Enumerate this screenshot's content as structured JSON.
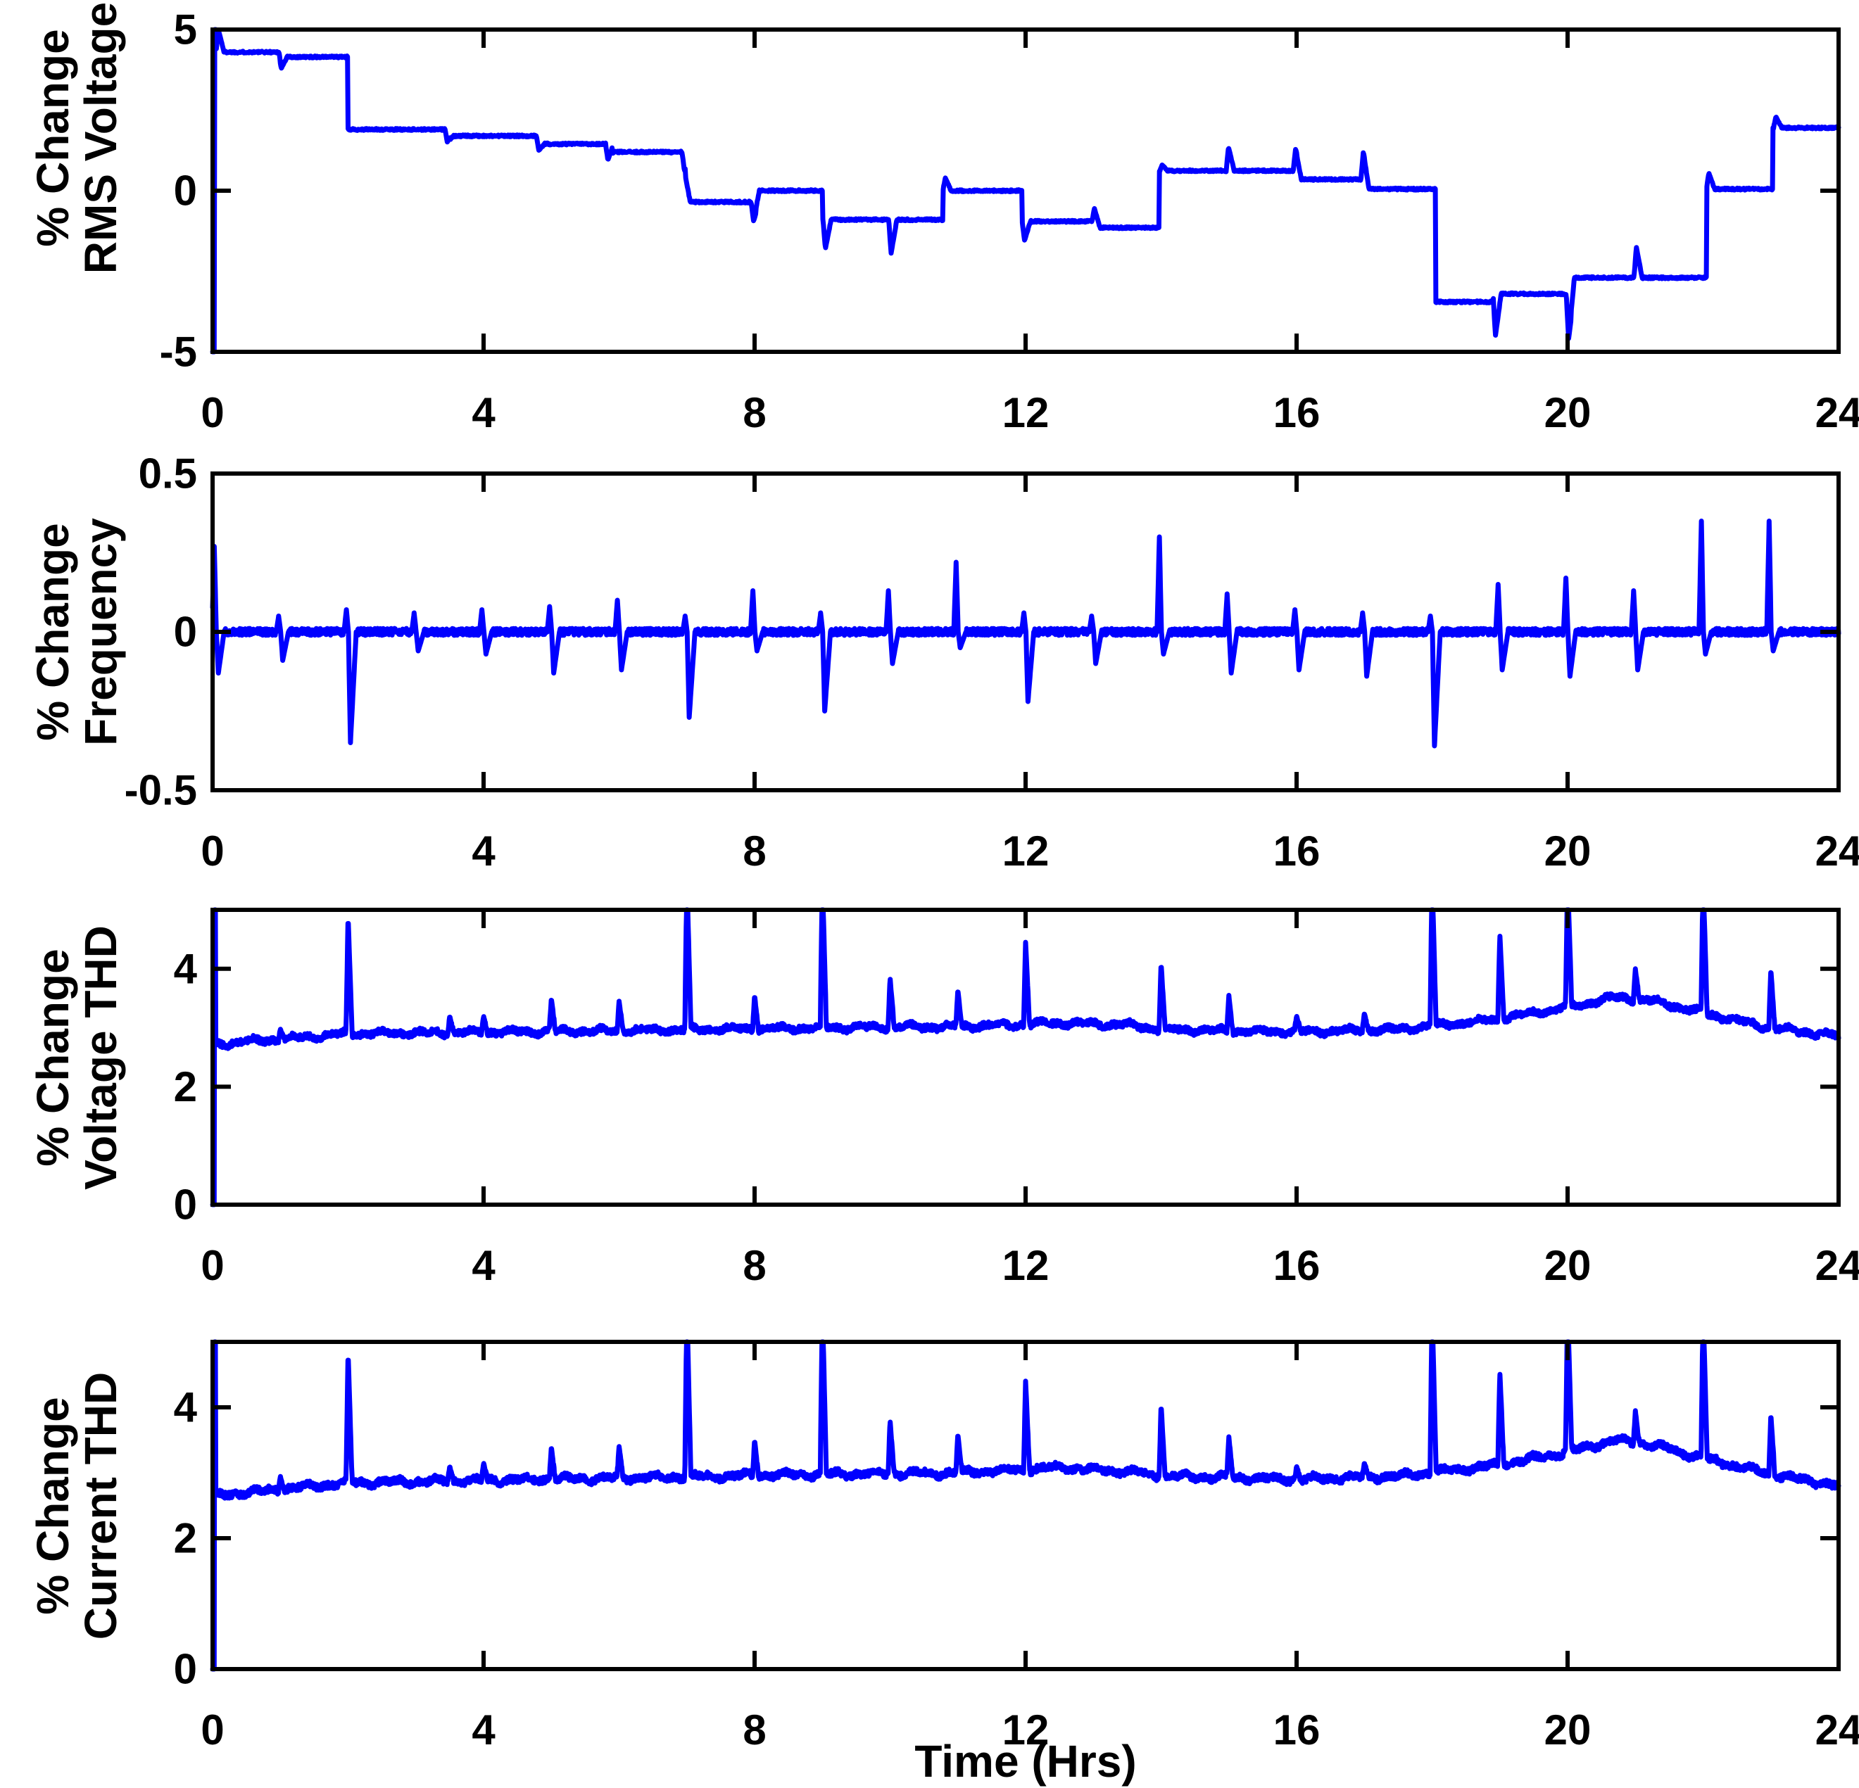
{
  "figure": {
    "background": "#FFFFFF",
    "axis_color": "#000000",
    "line_color": "#0000FF",
    "x_axis_label": "Time (Hrs)"
  },
  "chart_data": [
    {
      "type": "line",
      "id": "rms-voltage",
      "ylabel": [
        "% Change",
        "RMS Voltage"
      ],
      "ylim": [
        -5,
        5
      ],
      "yticks": [
        -5,
        0,
        5
      ],
      "ytick_labels": [
        "-5",
        "0",
        "5"
      ],
      "xlim": [
        0,
        24
      ],
      "xticks": [
        0,
        4,
        8,
        12,
        16,
        20,
        24
      ],
      "xtick_labels": [
        "0",
        "4",
        "8",
        "12",
        "16",
        "20",
        "24"
      ],
      "series_kind": "steps",
      "noise_amp": 0.03,
      "init_vline": {
        "t": 0.03,
        "span": [
          -5,
          5
        ]
      },
      "steps": [
        [
          0.05,
          1.0,
          4.3
        ],
        [
          1.0,
          2.0,
          4.15
        ],
        [
          2.0,
          3.5,
          1.9
        ],
        [
          3.5,
          4.82,
          1.7
        ],
        [
          4.82,
          5.9,
          1.45
        ],
        [
          5.9,
          6.98,
          1.2
        ],
        [
          6.98,
          8.02,
          -0.35
        ],
        [
          8.02,
          9.0,
          0.0
        ],
        [
          9.0,
          10.78,
          -0.9
        ],
        [
          10.78,
          11.95,
          0.0
        ],
        [
          11.95,
          13.02,
          -0.95
        ],
        [
          13.02,
          13.97,
          -1.15
        ],
        [
          13.97,
          16.0,
          0.62
        ],
        [
          16.0,
          17.0,
          0.35
        ],
        [
          17.0,
          18.05,
          0.05
        ],
        [
          18.05,
          18.9,
          -3.45
        ],
        [
          18.9,
          20.05,
          -3.2
        ],
        [
          20.05,
          22.05,
          -2.7
        ],
        [
          22.05,
          23.03,
          0.05
        ],
        [
          23.03,
          24.0,
          1.95
        ]
      ],
      "transients": [
        [
          0.07,
          5.0
        ],
        [
          1.0,
          3.8
        ],
        [
          3.45,
          1.5
        ],
        [
          4.8,
          1.25
        ],
        [
          5.82,
          0.95
        ],
        [
          6.95,
          0.6
        ],
        [
          7.97,
          -0.95
        ],
        [
          9.03,
          -1.8
        ],
        [
          10.0,
          -1.95
        ],
        [
          10.8,
          0.4
        ],
        [
          11.97,
          -1.55
        ],
        [
          13.0,
          -0.55
        ],
        [
          14.0,
          0.8
        ],
        [
          14.98,
          1.35
        ],
        [
          15.97,
          1.3
        ],
        [
          16.97,
          1.2
        ],
        [
          18.92,
          -4.5
        ],
        [
          20.0,
          -4.6
        ],
        [
          21.0,
          -1.75
        ],
        [
          22.07,
          0.55
        ],
        [
          23.06,
          2.3
        ]
      ]
    },
    {
      "type": "line",
      "id": "frequency",
      "ylabel": [
        "% Change",
        "Frequency"
      ],
      "ylim": [
        -0.5,
        0.5
      ],
      "yticks": [
        -0.5,
        0,
        0.5
      ],
      "ytick_labels": [
        "-0.5",
        "0",
        "0.5"
      ],
      "xlim": [
        0,
        24
      ],
      "xticks": [
        0,
        4,
        8,
        12,
        16,
        20,
        24
      ],
      "xtick_labels": [
        "0",
        "4",
        "8",
        "12",
        "16",
        "20",
        "24"
      ],
      "series_kind": "spikes_bipolar",
      "baseline": 0,
      "noise_amp": 0.011,
      "events": [
        [
          0.05,
          0.27,
          -0.13
        ],
        [
          1,
          0.05,
          -0.09
        ],
        [
          2,
          0.07,
          -0.35
        ],
        [
          3,
          0.06,
          -0.06
        ],
        [
          4,
          0.07,
          -0.07
        ],
        [
          5,
          0.08,
          -0.13
        ],
        [
          6,
          0.1,
          -0.12
        ],
        [
          7,
          0.05,
          -0.27
        ],
        [
          8,
          0.13,
          -0.06
        ],
        [
          9,
          0.06,
          -0.25
        ],
        [
          10,
          0.13,
          -0.1
        ],
        [
          11,
          0.22,
          -0.05
        ],
        [
          12,
          0.06,
          -0.22
        ],
        [
          13,
          0.05,
          -0.1
        ],
        [
          14,
          0.3,
          -0.07
        ],
        [
          15,
          0.12,
          -0.13
        ],
        [
          16,
          0.07,
          -0.12
        ],
        [
          17,
          0.06,
          -0.14
        ],
        [
          18,
          0.05,
          -0.36
        ],
        [
          19,
          0.15,
          -0.12
        ],
        [
          20,
          0.17,
          -0.14
        ],
        [
          21,
          0.13,
          -0.12
        ],
        [
          22,
          0.35,
          -0.07
        ],
        [
          23,
          0.35,
          -0.06
        ]
      ]
    },
    {
      "type": "line",
      "id": "voltage-thd",
      "ylabel": [
        "% Change",
        "Voltage THD"
      ],
      "ylim": [
        0,
        5
      ],
      "yticks": [
        0,
        2,
        4
      ],
      "ytick_labels": [
        "0",
        "2",
        "4"
      ],
      "xlim": [
        0,
        24
      ],
      "xticks": [
        0,
        4,
        8,
        12,
        16,
        20,
        24
      ],
      "xtick_labels": [
        "0",
        "4",
        "8",
        "12",
        "16",
        "20",
        "24"
      ],
      "series_kind": "noisy_spikes",
      "noise_amp": 0.05,
      "init_vline": {
        "t": 0.025,
        "span": [
          0,
          5
        ]
      },
      "baseline_points": [
        [
          0,
          2.72
        ],
        [
          2,
          2.9
        ],
        [
          6,
          2.95
        ],
        [
          9,
          3.0
        ],
        [
          11,
          3.02
        ],
        [
          12.5,
          3.08
        ],
        [
          13.5,
          3.05
        ],
        [
          14,
          2.97
        ],
        [
          16,
          2.93
        ],
        [
          17.5,
          2.97
        ],
        [
          19,
          3.15
        ],
        [
          20,
          3.35
        ],
        [
          20.7,
          3.52
        ],
        [
          21.3,
          3.45
        ],
        [
          22,
          3.25
        ],
        [
          23,
          3.0
        ],
        [
          24,
          2.86
        ]
      ],
      "spikes": [
        [
          1,
          2.98
        ],
        [
          2,
          4.9
        ],
        [
          3.5,
          3.2
        ],
        [
          4,
          3.2
        ],
        [
          5,
          3.5
        ],
        [
          6,
          3.45
        ],
        [
          7,
          5.6
        ],
        [
          8,
          3.55
        ],
        [
          9,
          5.6
        ],
        [
          10,
          3.85
        ],
        [
          11,
          3.65
        ],
        [
          12,
          4.45
        ],
        [
          14,
          4.1
        ],
        [
          15,
          3.55
        ],
        [
          16,
          3.2
        ],
        [
          17,
          3.25
        ],
        [
          18,
          5.6
        ],
        [
          19,
          4.6
        ],
        [
          20,
          5.6
        ],
        [
          21,
          4.0
        ],
        [
          22,
          5.6
        ],
        [
          23,
          4.0
        ]
      ]
    },
    {
      "type": "line",
      "id": "current-thd",
      "ylabel": [
        "% Change",
        "Current THD"
      ],
      "ylim": [
        0,
        5
      ],
      "yticks": [
        0,
        2,
        4
      ],
      "ytick_labels": [
        "0",
        "2",
        "4"
      ],
      "xlim": [
        0,
        24
      ],
      "xticks": [
        0,
        4,
        8,
        12,
        16,
        20,
        24
      ],
      "xtick_labels": [
        "0",
        "4",
        "8",
        "12",
        "16",
        "20",
        "24"
      ],
      "xlabel": "Time (Hrs)",
      "series_kind": "noisy_spikes",
      "noise_amp": 0.05,
      "init_vline": {
        "t": 0.025,
        "span": [
          0,
          5
        ]
      },
      "baseline_points": [
        [
          0,
          2.65
        ],
        [
          2,
          2.85
        ],
        [
          6,
          2.92
        ],
        [
          9,
          2.98
        ],
        [
          11,
          3.0
        ],
        [
          12.5,
          3.08
        ],
        [
          13.5,
          3.02
        ],
        [
          14,
          2.95
        ],
        [
          16,
          2.9
        ],
        [
          17.5,
          2.95
        ],
        [
          19,
          3.12
        ],
        [
          20,
          3.32
        ],
        [
          20.7,
          3.5
        ],
        [
          21.3,
          3.42
        ],
        [
          22,
          3.22
        ],
        [
          23,
          2.98
        ],
        [
          24,
          2.8
        ]
      ],
      "spikes": [
        [
          1,
          2.95
        ],
        [
          2,
          4.85
        ],
        [
          3.5,
          3.1
        ],
        [
          4,
          3.15
        ],
        [
          5,
          3.4
        ],
        [
          6,
          3.4
        ],
        [
          7,
          5.6
        ],
        [
          8,
          3.5
        ],
        [
          9,
          5.6
        ],
        [
          10,
          3.8
        ],
        [
          11,
          3.6
        ],
        [
          12,
          4.4
        ],
        [
          14,
          4.05
        ],
        [
          15,
          3.55
        ],
        [
          16,
          3.1
        ],
        [
          17,
          3.15
        ],
        [
          18,
          5.6
        ],
        [
          19,
          4.55
        ],
        [
          20,
          5.6
        ],
        [
          21,
          3.95
        ],
        [
          22,
          5.6
        ],
        [
          23,
          3.9
        ]
      ]
    }
  ]
}
